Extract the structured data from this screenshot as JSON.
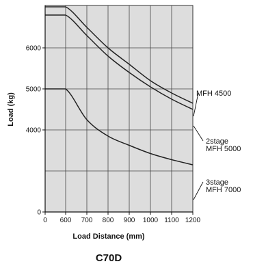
{
  "chart_data": {
    "type": "line",
    "title": "C70D",
    "xlabel": "Load Distance (mm)",
    "ylabel": "Load (kg)",
    "xlim": [
      0,
      1200
    ],
    "ylim": [
      0,
      7000
    ],
    "x_ticks": [
      {
        "value": 0,
        "label": "0"
      },
      {
        "value": 600,
        "label": "600"
      },
      {
        "value": 700,
        "label": "700"
      },
      {
        "value": 800,
        "label": "800"
      },
      {
        "value": 900,
        "label": "900"
      },
      {
        "value": 1000,
        "label": "1000"
      },
      {
        "value": 1100,
        "label": "1100"
      },
      {
        "value": 1200,
        "label": "1200"
      }
    ],
    "y_ticks": [
      {
        "value": 0,
        "label": "0"
      },
      {
        "value": 4000,
        "label": "4000"
      },
      {
        "value": 5000,
        "label": "5000"
      },
      {
        "value": 6000,
        "label": "6000"
      }
    ],
    "grid": true,
    "plot_background": "#dddddd",
    "line_color": "#222222",
    "series": [
      {
        "name": "MFH 4500",
        "x": [
          0,
          600,
          700,
          800,
          900,
          1000,
          1100,
          1200
        ],
        "y": [
          7000,
          7000,
          6500,
          6000,
          5600,
          5200,
          4900,
          4650
        ]
      },
      {
        "name": "2stage MFH 5000",
        "label_lines": [
          "2stage",
          "MFH 5000"
        ],
        "x": [
          0,
          600,
          700,
          800,
          900,
          1000,
          1100,
          1200
        ],
        "y": [
          6800,
          6800,
          6300,
          5800,
          5400,
          5050,
          4750,
          4500
        ]
      },
      {
        "name": "3stage MFH 7000",
        "label_lines": [
          "3stage",
          "MFH 7000"
        ],
        "x": [
          0,
          600,
          700,
          800,
          900,
          1000,
          1100,
          1200
        ],
        "y": [
          5000,
          5000,
          4250,
          3700,
          3250,
          2850,
          2550,
          2300
        ]
      }
    ]
  }
}
